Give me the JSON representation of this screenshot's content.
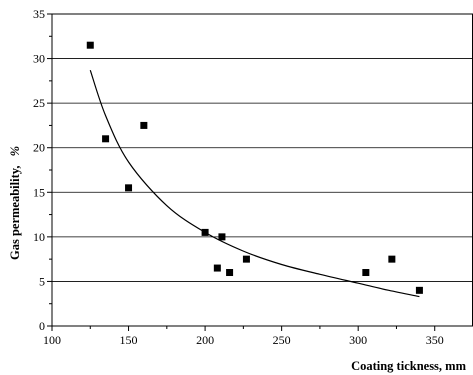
{
  "chart_data": {
    "type": "scatter",
    "xlabel": "Coating tickness, mm",
    "ylabel_main": "Gas permeability,",
    "ylabel_unit": "%",
    "xlim": [
      100,
      375
    ],
    "ylim": [
      0,
      35
    ],
    "x_ticks": [
      100,
      150,
      200,
      250,
      300,
      350
    ],
    "y_ticks": [
      0,
      5,
      10,
      15,
      20,
      25,
      30,
      35
    ],
    "grid": "horizontal",
    "points": [
      {
        "x": 125,
        "y": 31.5
      },
      {
        "x": 135,
        "y": 21.0
      },
      {
        "x": 150,
        "y": 15.5
      },
      {
        "x": 160,
        "y": 22.5
      },
      {
        "x": 200,
        "y": 10.5
      },
      {
        "x": 208,
        "y": 6.5
      },
      {
        "x": 211,
        "y": 10.0
      },
      {
        "x": 216,
        "y": 6.0
      },
      {
        "x": 227,
        "y": 7.5
      },
      {
        "x": 305,
        "y": 6.0
      },
      {
        "x": 322,
        "y": 7.5
      },
      {
        "x": 340,
        "y": 4.0
      }
    ],
    "fit_curve": [
      {
        "x": 125,
        "y": 28.7
      },
      {
        "x": 135,
        "y": 23.6
      },
      {
        "x": 150,
        "y": 18.4
      },
      {
        "x": 175,
        "y": 13.5
      },
      {
        "x": 200,
        "y": 10.5
      },
      {
        "x": 225,
        "y": 8.4
      },
      {
        "x": 250,
        "y": 6.9
      },
      {
        "x": 275,
        "y": 5.8
      },
      {
        "x": 300,
        "y": 4.8
      },
      {
        "x": 320,
        "y": 4.0
      },
      {
        "x": 340,
        "y": 3.3
      }
    ]
  }
}
